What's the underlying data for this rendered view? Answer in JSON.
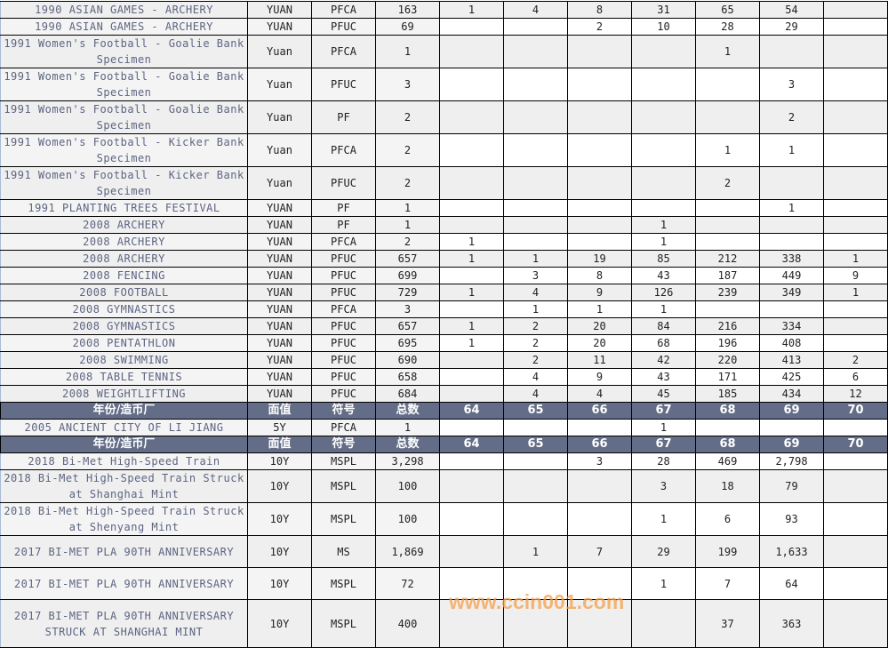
{
  "header": {
    "name": "年份/造币厂",
    "denom": "面值",
    "code": "符号",
    "total": "总数",
    "grades": [
      "64",
      "65",
      "66",
      "67",
      "68",
      "69",
      "70"
    ]
  },
  "rows": [
    {
      "name": "1990 ASIAN GAMES - ARCHERY",
      "denom": "YUAN",
      "code": "PFCA",
      "total": "163",
      "g": [
        "1",
        "4",
        "8",
        "31",
        "65",
        "54",
        ""
      ]
    },
    {
      "name": "1990 ASIAN GAMES - ARCHERY",
      "denom": "YUAN",
      "code": "PFUC",
      "total": "69",
      "g": [
        "",
        "",
        "2",
        "10",
        "28",
        "29",
        ""
      ]
    },
    {
      "name": "1991 Women's Football - Goalie Bank Specimen",
      "denom": "Yuan",
      "code": "PFCA",
      "total": "1",
      "g": [
        "",
        "",
        "",
        "",
        "1",
        "",
        ""
      ]
    },
    {
      "name": "1991 Women's Football - Goalie Bank Specimen",
      "denom": "Yuan",
      "code": "PFUC",
      "total": "3",
      "g": [
        "",
        "",
        "",
        "",
        "",
        "3",
        ""
      ]
    },
    {
      "name": "1991 Women's Football - Goalie Bank Specimen",
      "denom": "Yuan",
      "code": "PF",
      "total": "2",
      "g": [
        "",
        "",
        "",
        "",
        "",
        "2",
        ""
      ]
    },
    {
      "name": "1991 Women's Football - Kicker Bank Specimen",
      "denom": "Yuan",
      "code": "PFCA",
      "total": "2",
      "g": [
        "",
        "",
        "",
        "",
        "1",
        "1",
        ""
      ]
    },
    {
      "name": "1991 Women's Football - Kicker Bank Specimen",
      "denom": "Yuan",
      "code": "PFUC",
      "total": "2",
      "g": [
        "",
        "",
        "",
        "",
        "2",
        "",
        ""
      ]
    },
    {
      "name": "1991 PLANTING TREES FESTIVAL",
      "denom": "YUAN",
      "code": "PF",
      "total": "1",
      "g": [
        "",
        "",
        "",
        "",
        "",
        "1",
        ""
      ]
    },
    {
      "name": "2008 ARCHERY",
      "denom": "YUAN",
      "code": "PF",
      "total": "1",
      "g": [
        "",
        "",
        "",
        "1",
        "",
        "",
        ""
      ]
    },
    {
      "name": "2008 ARCHERY",
      "denom": "YUAN",
      "code": "PFCA",
      "total": "2",
      "g": [
        "1",
        "",
        "",
        "1",
        "",
        "",
        ""
      ]
    },
    {
      "name": "2008 ARCHERY",
      "denom": "YUAN",
      "code": "PFUC",
      "total": "657",
      "g": [
        "1",
        "1",
        "19",
        "85",
        "212",
        "338",
        "1"
      ]
    },
    {
      "name": "2008 FENCING",
      "denom": "YUAN",
      "code": "PFUC",
      "total": "699",
      "g": [
        "",
        "3",
        "8",
        "43",
        "187",
        "449",
        "9"
      ]
    },
    {
      "name": "2008 FOOTBALL",
      "denom": "YUAN",
      "code": "PFUC",
      "total": "729",
      "g": [
        "1",
        "4",
        "9",
        "126",
        "239",
        "349",
        "1"
      ]
    },
    {
      "name": "2008 GYMNASTICS",
      "denom": "YUAN",
      "code": "PFCA",
      "total": "3",
      "g": [
        "",
        "1",
        "1",
        "1",
        "",
        "",
        ""
      ]
    },
    {
      "name": "2008 GYMNASTICS",
      "denom": "YUAN",
      "code": "PFUC",
      "total": "657",
      "g": [
        "1",
        "2",
        "20",
        "84",
        "216",
        "334",
        ""
      ]
    },
    {
      "name": "2008 PENTATHLON",
      "denom": "YUAN",
      "code": "PFUC",
      "total": "695",
      "g": [
        "1",
        "2",
        "20",
        "68",
        "196",
        "408",
        ""
      ]
    },
    {
      "name": "2008 SWIMMING",
      "denom": "YUAN",
      "code": "PFUC",
      "total": "690",
      "g": [
        "",
        "2",
        "11",
        "42",
        "220",
        "413",
        "2"
      ]
    },
    {
      "name": "2008 TABLE TENNIS",
      "denom": "YUAN",
      "code": "PFUC",
      "total": "658",
      "g": [
        "",
        "4",
        "9",
        "43",
        "171",
        "425",
        "6"
      ]
    },
    {
      "name": "2008 WEIGHTLIFTING",
      "denom": "YUAN",
      "code": "PFUC",
      "total": "684",
      "g": [
        "",
        "4",
        "4",
        "45",
        "185",
        "434",
        "12"
      ]
    },
    {
      "header": true
    },
    {
      "name": "2005 ANCIENT CITY OF LI JIANG",
      "denom": "5Y",
      "code": "PFCA",
      "total": "1",
      "g": [
        "",
        "",
        "",
        "1",
        "",
        "",
        ""
      ]
    },
    {
      "header": true
    },
    {
      "name": "2018 Bi-Met High-Speed Train",
      "denom": "10Y",
      "code": "MSPL",
      "total": "3,298",
      "g": [
        "",
        "",
        "3",
        "28",
        "469",
        "2,798",
        ""
      ]
    },
    {
      "name": "2018 Bi-Met High-Speed Train Struck at Shanghai Mint",
      "denom": "10Y",
      "code": "MSPL",
      "total": "100",
      "g": [
        "",
        "",
        "",
        "3",
        "18",
        "79",
        ""
      ]
    },
    {
      "name": "2018 Bi-Met High-Speed Train Struck at Shenyang Mint",
      "denom": "10Y",
      "code": "MSPL",
      "total": "100",
      "g": [
        "",
        "",
        "",
        "1",
        "6",
        "93",
        ""
      ]
    },
    {
      "name": "2017 BI-MET PLA 90TH ANNIVERSARY",
      "denom": "10Y",
      "code": "MS",
      "total": "1,869",
      "g": [
        "",
        "1",
        "7",
        "29",
        "199",
        "1,633",
        ""
      ]
    },
    {
      "name": "2017 BI-MET PLA 90TH ANNIVERSARY",
      "denom": "10Y",
      "code": "MSPL",
      "total": "72",
      "g": [
        "",
        "",
        "",
        "1",
        "7",
        "64",
        ""
      ]
    },
    {
      "name": "2017 BI-MET PLA 90TH ANNIVERSARY STRUCK AT SHANGHAI MINT",
      "denom": "10Y",
      "code": "MSPL",
      "total": "400",
      "g": [
        "",
        "",
        "",
        "",
        "37",
        "363",
        ""
      ]
    }
  ],
  "watermark": "www.ccin001.com"
}
